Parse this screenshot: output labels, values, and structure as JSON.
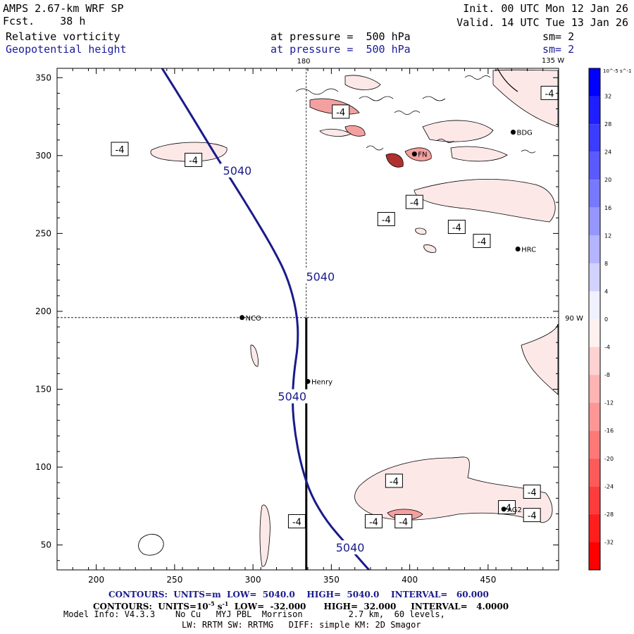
{
  "header": {
    "model": "AMPS 2.67-km WRF SP",
    "fcst_label": "Fcst.",
    "fcst_value": "38 h",
    "init": "Init. 00 UTC Mon 12 Jan 26",
    "valid": "Valid. 14 UTC Tue 13 Jan 26",
    "field1": "Relative vorticity",
    "field2": "Geopotential height",
    "level1": "at pressure =  500 hPa",
    "level2": "at pressure =  500 hPa",
    "sm1": "sm= 2",
    "sm2": "sm= 2",
    "lon_top_180": "180",
    "lon_top_135": "135 W",
    "lon_right_90": "90 W"
  },
  "colors": {
    "navy_contour": "#1a1a8c",
    "neg_light": "#fde8e8",
    "neg_mid": "#f4a0a0",
    "neg_dark": "#b03030"
  },
  "chart_data": {
    "type": "contour-map",
    "x_ticks": [
      200,
      250,
      300,
      350,
      400,
      450
    ],
    "y_ticks": [
      50,
      100,
      150,
      200,
      250,
      300,
      350
    ],
    "xlim": [
      175,
      495
    ],
    "ylim": [
      34,
      356
    ],
    "crosshair": {
      "x": 334,
      "y": 196
    },
    "section_line": {
      "x": 334,
      "y_from": 34,
      "y_to": 196
    },
    "height_contour": {
      "value": 5040,
      "label": "5040",
      "points": [
        [
          242,
          356
        ],
        [
          252,
          340
        ],
        [
          263,
          322
        ],
        [
          275,
          302
        ],
        [
          287,
          283
        ],
        [
          300,
          262
        ],
        [
          313,
          240
        ],
        [
          322,
          222
        ],
        [
          328,
          200
        ],
        [
          329,
          180
        ],
        [
          326,
          160
        ],
        [
          325,
          140
        ],
        [
          327,
          120
        ],
        [
          331,
          100
        ],
        [
          337,
          82
        ],
        [
          347,
          65
        ],
        [
          360,
          50
        ],
        [
          374,
          34
        ]
      ],
      "labels_at": [
        [
          290,
          290
        ],
        [
          343,
          222
        ],
        [
          325,
          145
        ],
        [
          362,
          48
        ]
      ]
    },
    "vorticity_label": "-4",
    "vorticity_labels_at": [
      [
        215,
        304
      ],
      [
        262,
        297
      ],
      [
        356,
        328
      ],
      [
        403,
        270
      ],
      [
        385,
        259
      ],
      [
        430,
        254
      ],
      [
        446,
        245
      ],
      [
        462,
        74
      ],
      [
        478,
        84
      ],
      [
        478,
        69
      ],
      [
        390,
        91
      ],
      [
        377,
        65
      ],
      [
        396,
        65
      ],
      [
        328,
        65
      ],
      [
        496,
        340
      ]
    ],
    "stations": [
      {
        "name": "NCO",
        "x": 293,
        "y": 196
      },
      {
        "name": "Henry",
        "x": 335,
        "y": 155
      },
      {
        "name": "HRC",
        "x": 469,
        "y": 240
      },
      {
        "name": "BDG",
        "x": 466,
        "y": 315
      },
      {
        "name": "AG2",
        "x": 460,
        "y": 73
      },
      {
        "name": "FN",
        "x": 403,
        "y": 301
      }
    ],
    "colorbar": {
      "unit": "10^-5 s^-1",
      "levels": [
        -36,
        -32,
        -28,
        -24,
        -20,
        -16,
        -12,
        -8,
        -4,
        0,
        4,
        8,
        12,
        16,
        20,
        24,
        28,
        32,
        36
      ],
      "tick_labels": [
        "32",
        "28",
        "24",
        "20",
        "16",
        "12",
        "8",
        "4",
        "0",
        "-4",
        "-8",
        "-12",
        "-16",
        "-20",
        "-24",
        "-28",
        "-32"
      ]
    }
  },
  "footer": {
    "line1_prefix": "CONTOURS:  UNITS=m  LOW=  5040.0",
    "line1_high": "HIGH=  5040.0",
    "line1_interval": "INTERVAL=   60.000",
    "line2_prefix": "CONTOURS:  UNITS=10",
    "line2_exp": "-5",
    "line2_mid": " s",
    "line2_exp2": "-1",
    "line2_low": "  LOW=  -32.000",
    "line2_high": "HIGH=  32.000",
    "line2_interval": "INTERVAL=   4.0000",
    "line3": "Model Info: V4.3.3    No Cu   MYJ PBL  Morrison         2.7 km,  60 levels,",
    "line4": "LW: RRTM SW: RRTMG   DIFF: simple KM: 2D Smagor"
  }
}
